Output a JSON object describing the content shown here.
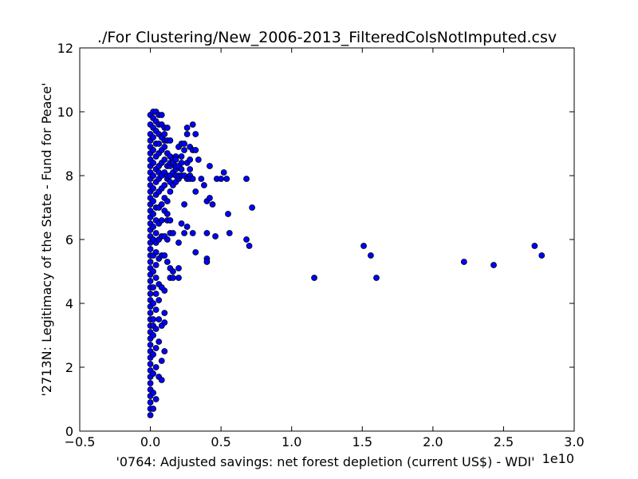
{
  "chart_data": {
    "type": "scatter",
    "title": "./For Clustering/New_2006-2013_FilteredColsNotImputed.csv",
    "xlabel": "'0764: Adjusted savings: net forest depletion  (current US$) - WDI'",
    "ylabel": "'2713N: Legitimacy of the State - Fund for Peace'",
    "x_offset_label": "1e10",
    "x_scale_factor": 10000000000,
    "xlim": [
      -0.5,
      3.0
    ],
    "ylim": [
      0,
      12
    ],
    "xticks": [
      -0.5,
      0.0,
      0.5,
      1.0,
      1.5,
      2.0,
      2.5,
      3.0
    ],
    "xtick_labels": [
      "−0.5",
      "0.0",
      "0.5",
      "1.0",
      "1.5",
      "2.0",
      "2.5",
      "3.0"
    ],
    "yticks": [
      0,
      2,
      4,
      6,
      8,
      10,
      12
    ],
    "ytick_labels": [
      "0",
      "2",
      "4",
      "6",
      "8",
      "10",
      "12"
    ],
    "grid": false,
    "marker_color": "#0000ff",
    "marker_edge_color": "#000000",
    "series": [
      {
        "x": [
          0.0,
          0.0,
          0.0,
          0.0,
          0.0,
          0.0,
          0.0,
          0.0,
          0.0,
          0.0,
          0.0,
          0.0,
          0.0,
          0.0,
          0.0,
          0.0,
          0.0,
          0.0,
          0.0,
          0.0,
          0.0,
          0.0,
          0.0,
          0.0,
          0.0,
          0.0,
          0.0,
          0.0,
          0.0,
          0.0,
          0.0,
          0.0,
          0.0,
          0.0,
          0.0,
          0.0,
          0.0,
          0.0,
          0.0,
          0.0,
          0.0,
          0.0,
          0.0,
          0.0,
          0.0,
          0.0,
          0.0,
          0.02,
          0.02,
          0.02,
          0.02,
          0.02,
          0.02,
          0.02,
          0.02,
          0.02,
          0.02,
          0.02,
          0.02,
          0.02,
          0.02,
          0.02,
          0.02,
          0.02,
          0.02,
          0.02,
          0.02,
          0.02,
          0.02,
          0.02,
          0.04,
          0.04,
          0.04,
          0.04,
          0.04,
          0.04,
          0.04,
          0.04,
          0.04,
          0.04,
          0.04,
          0.04,
          0.04,
          0.04,
          0.04,
          0.04,
          0.04,
          0.04,
          0.04,
          0.04,
          0.04,
          0.06,
          0.06,
          0.06,
          0.06,
          0.06,
          0.06,
          0.06,
          0.06,
          0.06,
          0.06,
          0.06,
          0.06,
          0.06,
          0.06,
          0.06,
          0.06,
          0.06,
          0.06,
          0.08,
          0.08,
          0.08,
          0.08,
          0.08,
          0.08,
          0.08,
          0.08,
          0.08,
          0.08,
          0.08,
          0.08,
          0.08,
          0.08,
          0.08,
          0.1,
          0.1,
          0.1,
          0.1,
          0.1,
          0.1,
          0.1,
          0.1,
          0.1,
          0.1,
          0.1,
          0.1,
          0.1,
          0.1,
          0.1,
          0.12,
          0.12,
          0.12,
          0.12,
          0.12,
          0.12,
          0.12,
          0.12,
          0.12,
          0.12,
          0.12,
          0.14,
          0.14,
          0.14,
          0.14,
          0.14,
          0.14,
          0.14,
          0.14,
          0.14,
          0.14,
          0.14,
          0.16,
          0.16,
          0.16,
          0.16,
          0.16,
          0.16,
          0.16,
          0.18,
          0.18,
          0.18,
          0.18,
          0.18,
          0.18,
          0.2,
          0.2,
          0.2,
          0.2,
          0.2,
          0.2,
          0.2,
          0.22,
          0.22,
          0.22,
          0.22,
          0.22,
          0.22,
          0.24,
          0.24,
          0.24,
          0.24,
          0.24,
          0.26,
          0.26,
          0.26,
          0.26,
          0.26,
          0.28,
          0.28,
          0.28,
          0.28,
          0.28,
          0.3,
          0.3,
          0.3,
          0.3,
          0.32,
          0.32,
          0.32,
          0.32,
          0.34,
          0.36,
          0.38,
          0.4,
          0.4,
          0.4,
          0.4,
          0.42,
          0.42,
          0.44,
          0.46,
          0.47,
          0.5,
          0.52,
          0.54,
          0.55,
          0.56,
          0.68,
          0.68,
          0.7,
          0.72,
          1.16,
          1.51,
          1.56,
          1.6,
          2.22,
          2.43,
          2.72,
          2.77
        ],
        "y": [
          0.5,
          0.7,
          0.9,
          1.1,
          1.3,
          1.5,
          1.7,
          1.9,
          2.1,
          2.3,
          2.5,
          2.7,
          2.9,
          3.1,
          3.3,
          3.5,
          3.7,
          3.9,
          4.1,
          4.3,
          4.5,
          4.7,
          4.9,
          5.1,
          5.3,
          5.5,
          5.7,
          5.9,
          6.1,
          6.3,
          6.5,
          6.7,
          6.9,
          7.1,
          7.3,
          7.5,
          7.7,
          7.9,
          8.1,
          8.3,
          8.5,
          8.7,
          8.9,
          9.1,
          9.3,
          9.6,
          9.9,
          0.7,
          1.2,
          1.8,
          2.4,
          3.0,
          3.5,
          4.0,
          4.5,
          5.0,
          5.5,
          6.0,
          6.4,
          6.8,
          7.2,
          7.6,
          8.0,
          8.4,
          8.8,
          9.2,
          9.5,
          9.8,
          10.0,
          3.3,
          1.0,
          2.0,
          2.6,
          3.2,
          3.8,
          4.3,
          4.8,
          5.2,
          5.6,
          6.2,
          6.6,
          7.0,
          7.4,
          7.8,
          8.2,
          8.6,
          9.0,
          9.4,
          9.7,
          10.0,
          5.9,
          1.7,
          2.8,
          3.5,
          4.1,
          4.6,
          5.4,
          6.0,
          6.5,
          7.0,
          7.5,
          7.9,
          8.3,
          8.7,
          9.0,
          9.3,
          9.6,
          9.9,
          8.1,
          1.6,
          2.2,
          3.3,
          4.5,
          5.5,
          6.1,
          6.6,
          7.1,
          7.6,
          8.0,
          8.4,
          8.8,
          9.2,
          9.6,
          9.9,
          2.5,
          3.4,
          3.7,
          4.4,
          5.5,
          6.1,
          6.9,
          7.3,
          7.7,
          8.1,
          8.5,
          8.9,
          9.3,
          9.5,
          9.1,
          5.3,
          6.6,
          6.8,
          7.2,
          7.9,
          8.3,
          8.7,
          9.1,
          9.5,
          8.0,
          6.0,
          4.8,
          5.1,
          6.6,
          7.5,
          8.0,
          8.3,
          8.6,
          9.1,
          8.4,
          7.8,
          6.2,
          4.8,
          5.0,
          6.2,
          7.7,
          8.1,
          8.5,
          8.4,
          8.0,
          8.2,
          7.8,
          8.3,
          8.6,
          8.5,
          4.8,
          5.1,
          5.9,
          7.9,
          8.3,
          8.9,
          8.0,
          6.5,
          8.0,
          8.2,
          8.6,
          9.0,
          8.4,
          6.2,
          7.1,
          8.0,
          8.8,
          9.0,
          9.3,
          9.5,
          8.4,
          6.4,
          7.9,
          8.9,
          8.5,
          8.2,
          8.0,
          7.9,
          9.6,
          8.8,
          7.9,
          6.2,
          9.3,
          8.8,
          7.5,
          5.6,
          8.5,
          7.9,
          7.7,
          7.2,
          6.2,
          5.4,
          5.3,
          8.3,
          7.3,
          7.1,
          6.1,
          7.9,
          7.9,
          8.1,
          7.9,
          6.8,
          6.2,
          7.9,
          6.0,
          5.8,
          7.0,
          4.8,
          5.8,
          5.5,
          4.8,
          5.3,
          5.2,
          5.8,
          5.5
        ]
      }
    ]
  }
}
